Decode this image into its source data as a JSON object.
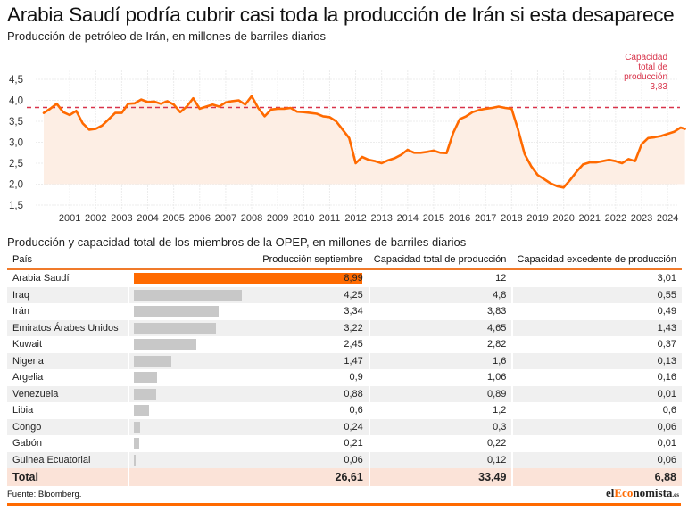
{
  "header": {
    "title": "Arabia Saudí podría cubrir casi toda la producción de Irán si esta desaparece",
    "subtitle": "Producción de petróleo de Irán, en millones de barriles diarios"
  },
  "chart_data": {
    "type": "line",
    "title": "Producción de petróleo de Irán, en millones de barriles diarios",
    "xlabel": "",
    "ylabel": "",
    "ylim": [
      1.5,
      4.5
    ],
    "xlim": [
      2000.0,
      2024.9
    ],
    "y_ticks": [
      "4,5",
      "4,0",
      "3,5",
      "3,0",
      "2,5",
      "2,0",
      "1,5"
    ],
    "y_tick_values": [
      4.5,
      4.0,
      3.5,
      3.0,
      2.5,
      2.0,
      1.5
    ],
    "x_ticks": [
      "2001",
      "2002",
      "2003",
      "2004",
      "2005",
      "2006",
      "2007",
      "2008",
      "2009",
      "2010",
      "2011",
      "2012",
      "2013",
      "2014",
      "2015",
      "2016",
      "2017",
      "2018",
      "2019",
      "2020",
      "2021",
      "2022",
      "2023",
      "2024"
    ],
    "grid": true,
    "area_baseline": 2.0,
    "colors": {
      "line": "#ff6a00",
      "area": "#fdeee4",
      "reference": "#d8334a"
    },
    "reference_line": {
      "value": 3.83,
      "label_lines": [
        "Capacidad",
        "total de",
        "producción",
        "3,83"
      ]
    },
    "series": [
      {
        "name": "Producción de petróleo de Irán",
        "x": [
          2000.0,
          2000.25,
          2000.5,
          2000.75,
          2001.0,
          2001.25,
          2001.5,
          2001.75,
          2002.0,
          2002.25,
          2002.5,
          2002.75,
          2003.0,
          2003.25,
          2003.5,
          2003.75,
          2004.0,
          2004.25,
          2004.5,
          2004.75,
          2005.0,
          2005.25,
          2005.5,
          2005.75,
          2006.0,
          2006.25,
          2006.5,
          2006.75,
          2007.0,
          2007.25,
          2007.5,
          2007.75,
          2008.0,
          2008.25,
          2008.5,
          2008.75,
          2009.0,
          2009.25,
          2009.5,
          2009.75,
          2010.0,
          2010.25,
          2010.5,
          2010.75,
          2011.0,
          2011.25,
          2011.5,
          2011.75,
          2012.0,
          2012.25,
          2012.5,
          2012.75,
          2013.0,
          2013.25,
          2013.5,
          2013.75,
          2014.0,
          2014.25,
          2014.5,
          2014.75,
          2015.0,
          2015.25,
          2015.5,
          2015.75,
          2016.0,
          2016.25,
          2016.5,
          2016.75,
          2017.0,
          2017.25,
          2017.5,
          2017.75,
          2018.0,
          2018.25,
          2018.5,
          2018.75,
          2019.0,
          2019.25,
          2019.5,
          2019.75,
          2020.0,
          2020.25,
          2020.5,
          2020.75,
          2021.0,
          2021.25,
          2021.5,
          2021.75,
          2022.0,
          2022.25,
          2022.5,
          2022.75,
          2023.0,
          2023.25,
          2023.5,
          2023.75,
          2024.0,
          2024.25,
          2024.5,
          2024.67
        ],
        "values": [
          3.7,
          3.8,
          3.92,
          3.72,
          3.65,
          3.75,
          3.45,
          3.3,
          3.32,
          3.4,
          3.55,
          3.7,
          3.7,
          3.92,
          3.93,
          4.02,
          3.96,
          3.97,
          3.92,
          3.98,
          3.9,
          3.72,
          3.85,
          4.05,
          3.8,
          3.85,
          3.9,
          3.85,
          3.95,
          3.98,
          4.0,
          3.9,
          4.1,
          3.82,
          3.62,
          3.78,
          3.8,
          3.8,
          3.82,
          3.73,
          3.72,
          3.7,
          3.68,
          3.62,
          3.6,
          3.5,
          3.3,
          3.1,
          2.5,
          2.65,
          2.58,
          2.55,
          2.5,
          2.57,
          2.62,
          2.7,
          2.82,
          2.75,
          2.75,
          2.77,
          2.8,
          2.75,
          2.74,
          3.22,
          3.55,
          3.62,
          3.72,
          3.77,
          3.8,
          3.82,
          3.85,
          3.82,
          3.8,
          3.3,
          2.72,
          2.43,
          2.22,
          2.12,
          2.02,
          1.95,
          1.92,
          2.1,
          2.3,
          2.47,
          2.52,
          2.52,
          2.55,
          2.58,
          2.55,
          2.5,
          2.6,
          2.55,
          2.95,
          3.1,
          3.12,
          3.15,
          3.2,
          3.25,
          3.35,
          3.32
        ]
      }
    ]
  },
  "table": {
    "title": "Producción y capacidad total de los miembros de la OPEP, en millones de barriles diarios",
    "columns": [
      "País",
      "Producción septiembre",
      "Capacidad total de producción",
      "Capacidad excedente de producción"
    ],
    "bar_max": 8.99,
    "colors": {
      "highlight": "#ff6a00",
      "bar": "#c8c8c8",
      "total_bg": "#fbe3d8",
      "header_rule": "#f07a2a"
    },
    "rows": [
      {
        "country": "Arabia Saudí",
        "production": "8,99",
        "production_value": 8.99,
        "capacity": "12",
        "spare": "3,01",
        "highlight": true
      },
      {
        "country": "Iraq",
        "production": "4,25",
        "production_value": 4.25,
        "capacity": "4,8",
        "spare": "0,55"
      },
      {
        "country": "Irán",
        "production": "3,34",
        "production_value": 3.34,
        "capacity": "3,83",
        "spare": "0,49"
      },
      {
        "country": "Emiratos Árabes Unidos",
        "production": "3,22",
        "production_value": 3.22,
        "capacity": "4,65",
        "spare": "1,43"
      },
      {
        "country": "Kuwait",
        "production": "2,45",
        "production_value": 2.45,
        "capacity": "2,82",
        "spare": "0,37"
      },
      {
        "country": "Nigeria",
        "production": "1,47",
        "production_value": 1.47,
        "capacity": "1,6",
        "spare": "0,13"
      },
      {
        "country": "Argelia",
        "production": "0,9",
        "production_value": 0.9,
        "capacity": "1,06",
        "spare": "0,16"
      },
      {
        "country": "Venezuela",
        "production": "0,88",
        "production_value": 0.88,
        "capacity": "0,89",
        "spare": "0,01"
      },
      {
        "country": "Libia",
        "production": "0,6",
        "production_value": 0.6,
        "capacity": "1,2",
        "spare": "0,6"
      },
      {
        "country": "Congo",
        "production": "0,24",
        "production_value": 0.24,
        "capacity": "0,3",
        "spare": "0,06"
      },
      {
        "country": "Gabón",
        "production": "0,21",
        "production_value": 0.21,
        "capacity": "0,22",
        "spare": "0,01"
      },
      {
        "country": "Guinea Ecuatorial",
        "production": "0,06",
        "production_value": 0.06,
        "capacity": "0,12",
        "spare": "0,06"
      }
    ],
    "total": {
      "label": "Total",
      "production": "26,61",
      "capacity": "33,49",
      "spare": "6,88"
    }
  },
  "footer": {
    "source": "Fuente: Bloomberg.",
    "logo_prefix": "el",
    "logo_highlight": "Eco",
    "logo_suffix": "nomista",
    "logo_domain": ".es"
  }
}
